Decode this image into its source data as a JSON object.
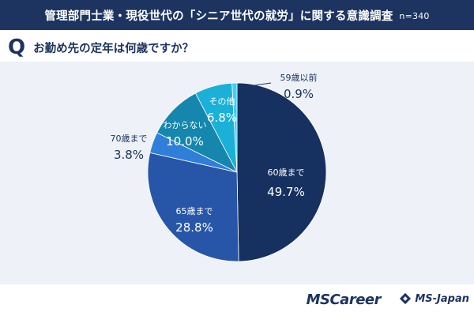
{
  "header": {
    "title": "管理部門士業・現役世代の「シニア世代の就労」に関する意識調査",
    "sample": "n=340"
  },
  "question": {
    "mark": "Q",
    "text": "お勤め先の定年は何歳ですか？"
  },
  "chart_data": {
    "type": "pie",
    "title": "",
    "start": "12 o'clock, clockwise",
    "categories": [
      "60歳まで",
      "65歳まで",
      "70歳まで",
      "わからない",
      "その他",
      "59歳以前"
    ],
    "values": [
      49.7,
      28.8,
      3.8,
      10.0,
      6.8,
      0.9
    ],
    "labels": [
      "49.7%",
      "28.8%",
      "3.8%",
      "10.0%",
      "6.8%",
      "0.9%"
    ],
    "colors": [
      "#16305f",
      "#2756a8",
      "#2f7fd9",
      "#1586ad",
      "#1ab0d8",
      "#3fd0f5"
    ],
    "label_colors": [
      "#ffffff",
      "#ffffff",
      "#1d3460",
      "#ffffff",
      "#ffffff",
      "#1d3460"
    ]
  },
  "footer": {
    "logo_mscareer": "MSCareer",
    "logo_msjapan": "MS-Japan"
  }
}
